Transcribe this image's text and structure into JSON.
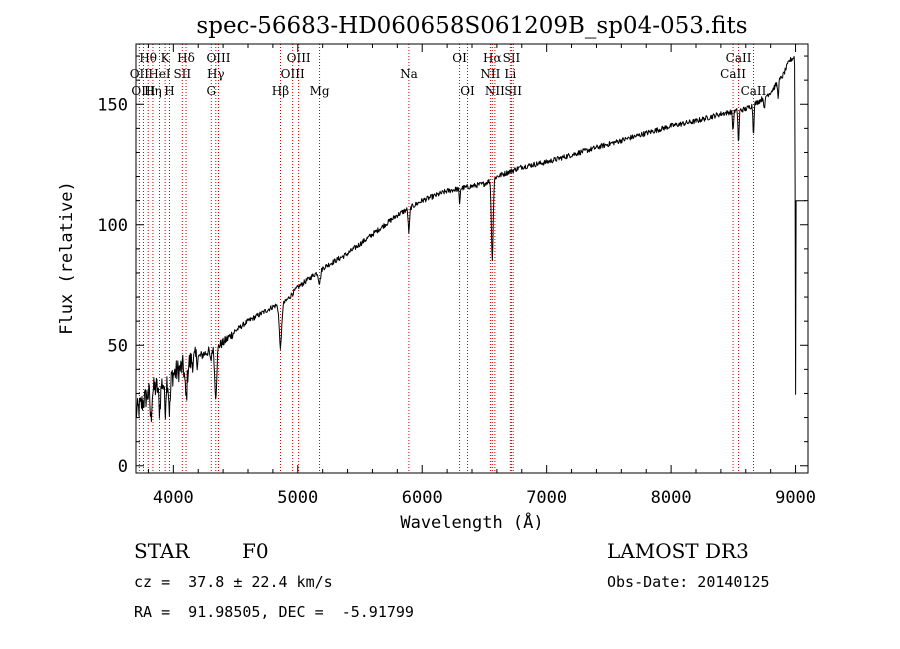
{
  "chart_data": {
    "type": "line",
    "title": "spec-56683-HD060658S061209B_sp04-053.fits",
    "xlabel": "Wavelength (Å)",
    "ylabel": "Flux (relative)",
    "xlim": [
      3700,
      9100
    ],
    "ylim": [
      -3,
      175
    ],
    "xticks": [
      4000,
      5000,
      6000,
      7000,
      8000,
      9000
    ],
    "yticks": [
      0,
      50,
      100,
      150
    ],
    "line_color": "#000000",
    "marker_color": "#cc0000",
    "continuum": [
      [
        3700,
        22
      ],
      [
        3800,
        30
      ],
      [
        3900,
        34
      ],
      [
        4000,
        38
      ],
      [
        4100,
        42
      ],
      [
        4200,
        45
      ],
      [
        4300,
        48
      ],
      [
        4400,
        51
      ],
      [
        4500,
        56
      ],
      [
        4600,
        60
      ],
      [
        4700,
        63
      ],
      [
        4800,
        66
      ],
      [
        4900,
        68
      ],
      [
        5000,
        74
      ],
      [
        5100,
        78
      ],
      [
        5200,
        82
      ],
      [
        5300,
        85
      ],
      [
        5400,
        88
      ],
      [
        5500,
        92
      ],
      [
        5600,
        96
      ],
      [
        5700,
        100
      ],
      [
        5800,
        104
      ],
      [
        5900,
        107
      ],
      [
        6000,
        110
      ],
      [
        6100,
        112
      ],
      [
        6200,
        114
      ],
      [
        6300,
        115
      ],
      [
        6400,
        116
      ],
      [
        6500,
        117
      ],
      [
        6600,
        120
      ],
      [
        6700,
        122
      ],
      [
        6800,
        124
      ],
      [
        7000,
        126
      ],
      [
        7200,
        129
      ],
      [
        7400,
        132
      ],
      [
        7600,
        135
      ],
      [
        7800,
        138
      ],
      [
        8000,
        141
      ],
      [
        8200,
        143
      ],
      [
        8400,
        146
      ],
      [
        8500,
        147
      ],
      [
        8600,
        148
      ],
      [
        8700,
        151
      ],
      [
        8800,
        155
      ],
      [
        8900,
        162
      ],
      [
        8950,
        168
      ],
      [
        9000,
        170
      ]
    ],
    "absorption_lines": [
      {
        "wavelength": 3820,
        "depth": 12,
        "width": 8
      },
      {
        "wavelength": 3889,
        "depth": 10,
        "width": 10
      },
      {
        "wavelength": 3934,
        "depth": 12,
        "width": 8
      },
      {
        "wavelength": 3970,
        "depth": 14,
        "width": 10
      },
      {
        "wavelength": 4102,
        "depth": 14,
        "width": 12
      },
      {
        "wavelength": 4300,
        "depth": 5,
        "width": 8
      },
      {
        "wavelength": 4341,
        "depth": 20,
        "width": 12
      },
      {
        "wavelength": 4861,
        "depth": 18,
        "width": 14
      },
      {
        "wavelength": 5175,
        "depth": 5,
        "width": 12
      },
      {
        "wavelength": 5893,
        "depth": 10,
        "width": 8
      },
      {
        "wavelength": 6300,
        "depth": 7,
        "width": 5
      },
      {
        "wavelength": 6563,
        "depth": 33,
        "width": 10
      },
      {
        "wavelength": 8498,
        "depth": 8,
        "width": 6
      },
      {
        "wavelength": 8542,
        "depth": 14,
        "width": 6
      },
      {
        "wavelength": 8662,
        "depth": 12,
        "width": 6
      },
      {
        "wavelength": 8750,
        "depth": 6,
        "width": 6
      },
      {
        "wavelength": 8860,
        "depth": 6,
        "width": 6
      },
      {
        "wavelength": 9000,
        "depth": 140,
        "width": 4
      }
    ],
    "line_markers": [
      {
        "label": "Hθ",
        "wavelength": 3798,
        "row": 1
      },
      {
        "label": "OII",
        "wavelength": 3727,
        "row": 2
      },
      {
        "label": "OIII",
        "wavelength": 3760,
        "row": 3
      },
      {
        "label": "Hη",
        "wavelength": 3836,
        "row": 3
      },
      {
        "label": "HeI",
        "wavelength": 3889,
        "row": 2
      },
      {
        "label": "K",
        "wavelength": 3934,
        "row": 1
      },
      {
        "label": "H",
        "wavelength": 3969,
        "row": 3
      },
      {
        "label": "SII",
        "wavelength": 4072,
        "row": 2
      },
      {
        "label": "Hδ",
        "wavelength": 4102,
        "row": 1
      },
      {
        "label": "OIII",
        "wavelength": 4363,
        "row": 1
      },
      {
        "label": "Hγ",
        "wavelength": 4341,
        "row": 2
      },
      {
        "label": "G",
        "wavelength": 4305,
        "row": 3
      },
      {
        "label": "Hβ",
        "wavelength": 4861,
        "row": 3
      },
      {
        "label": "OIII",
        "wavelength": 5007,
        "row": 1
      },
      {
        "label": "OIII",
        "wavelength": 4959,
        "row": 2
      },
      {
        "label": "Mg",
        "wavelength": 5175,
        "row": 3
      },
      {
        "label": "Na",
        "wavelength": 5893,
        "row": 2
      },
      {
        "label": "OI",
        "wavelength": 6300,
        "row": 1
      },
      {
        "label": "OI",
        "wavelength": 6364,
        "row": 3
      },
      {
        "label": "Hα",
        "wavelength": 6563,
        "row": 1
      },
      {
        "label": "NII",
        "wavelength": 6548,
        "row": 2
      },
      {
        "label": "NII",
        "wavelength": 6584,
        "row": 3
      },
      {
        "label": "SII",
        "wavelength": 6717,
        "row": 1
      },
      {
        "label": "Li",
        "wavelength": 6708,
        "row": 2
      },
      {
        "label": "SII",
        "wavelength": 6731,
        "row": 3
      },
      {
        "label": "CaII",
        "wavelength": 8542,
        "row": 1
      },
      {
        "label": "CaII",
        "wavelength": 8498,
        "row": 2
      },
      {
        "label": "CaII",
        "wavelength": 8662,
        "row": 3
      }
    ]
  },
  "info": {
    "object_class": "STAR",
    "subclass": "F0",
    "survey": "LAMOST DR3",
    "redshift": "cz =  37.8 ± 22.4 km/s",
    "obs_date": "Obs-Date: 20140125",
    "coordinates": "RA =  91.98505, DEC =  -5.91799"
  }
}
